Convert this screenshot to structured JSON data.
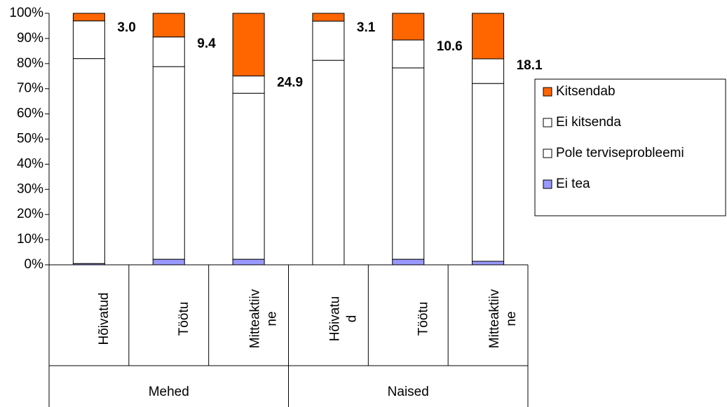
{
  "chart_data": {
    "type": "stacked-bar-100",
    "groups": [
      {
        "name": "Mehed",
        "categories": [
          "Hõivatud",
          "Töötu",
          "Mitteaktiiv\nne"
        ]
      },
      {
        "name": "Naised",
        "categories": [
          "Hõivatu\nd",
          "Töötu",
          "Mitteaktiiv\nne"
        ]
      }
    ],
    "series": [
      {
        "name": "Kitsendab",
        "color": "#ff6600",
        "values": [
          3.0,
          9.4,
          24.9,
          3.1,
          10.6,
          18.1
        ]
      },
      {
        "name": "Ei kitsenda",
        "color": "#ffffff",
        "values": [
          15.0,
          11.8,
          6.9,
          15.6,
          11.1,
          9.8
        ]
      },
      {
        "name": "Pole terviseprobleemi",
        "color": "#ffffff",
        "values": [
          81.5,
          76.6,
          66.0,
          81.3,
          76.1,
          70.7
        ]
      },
      {
        "name": "Ei tea",
        "color": "#9999ff",
        "values": [
          0.5,
          2.2,
          2.2,
          0,
          2.2,
          1.4
        ]
      }
    ],
    "ylim": [
      0,
      100
    ],
    "yticks": [
      {
        "value": 0,
        "label": "0%"
      },
      {
        "value": 10,
        "label": "10%"
      },
      {
        "value": 20,
        "label": "20%"
      },
      {
        "value": 30,
        "label": "30%"
      },
      {
        "value": 40,
        "label": "40%"
      },
      {
        "value": 50,
        "label": "50%"
      },
      {
        "value": 60,
        "label": "60%"
      },
      {
        "value": 70,
        "label": "70%"
      },
      {
        "value": 80,
        "label": "80%"
      },
      {
        "value": 90,
        "label": "90%"
      },
      {
        "value": 100,
        "label": "100%"
      }
    ],
    "legend": "right"
  }
}
